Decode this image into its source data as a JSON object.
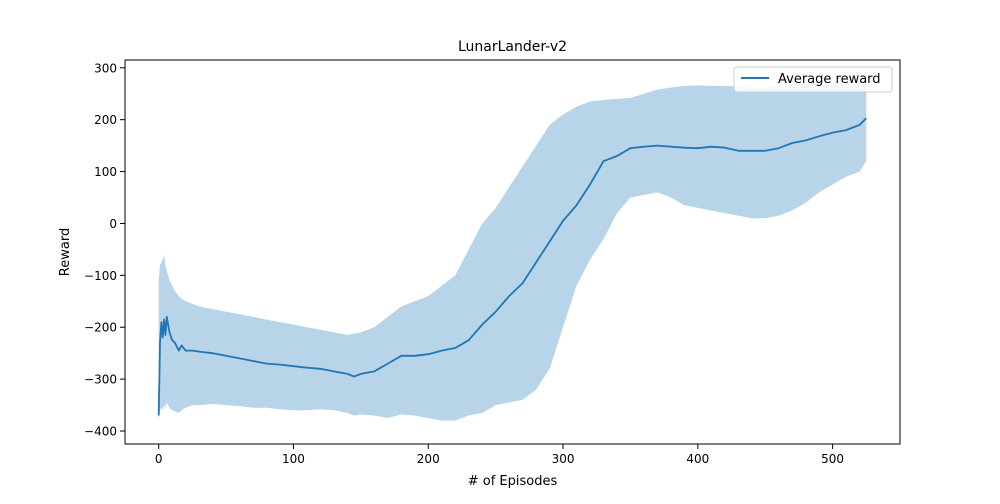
{
  "chart_data": {
    "type": "line",
    "title": "LunarLander-v2",
    "xlabel": "# of Episodes",
    "ylabel": "Reward",
    "xlim": [
      -25,
      550
    ],
    "ylim": [
      -425,
      315
    ],
    "xticks": [
      0,
      100,
      200,
      300,
      400,
      500
    ],
    "yticks": [
      -400,
      -300,
      -200,
      -100,
      0,
      100,
      200,
      300
    ],
    "grid": false,
    "legend_position": "top-right",
    "series": [
      {
        "name": "Average reward",
        "color": "#1f77b4",
        "band_color": "#b8d4e8",
        "x": [
          0,
          1,
          2,
          3,
          4,
          5,
          6,
          7,
          8,
          10,
          12,
          15,
          17,
          20,
          25,
          30,
          40,
          50,
          60,
          70,
          80,
          90,
          100,
          110,
          120,
          130,
          140,
          145,
          150,
          160,
          170,
          180,
          190,
          200,
          210,
          220,
          230,
          240,
          250,
          260,
          270,
          280,
          290,
          300,
          310,
          320,
          330,
          340,
          350,
          360,
          370,
          380,
          390,
          400,
          410,
          420,
          430,
          440,
          450,
          460,
          470,
          480,
          490,
          500,
          510,
          520,
          525
        ],
        "y": [
          -370,
          -230,
          -190,
          -220,
          -185,
          -215,
          -180,
          -195,
          -210,
          -225,
          -230,
          -245,
          -235,
          -245,
          -245,
          -247,
          -250,
          -255,
          -260,
          -265,
          -270,
          -272,
          -275,
          -278,
          -280,
          -285,
          -290,
          -295,
          -290,
          -285,
          -270,
          -255,
          -255,
          -252,
          -245,
          -240,
          -225,
          -195,
          -170,
          -140,
          -115,
          -75,
          -35,
          5,
          35,
          75,
          120,
          130,
          145,
          148,
          150,
          148,
          146,
          145,
          148,
          146,
          140,
          140,
          140,
          145,
          155,
          160,
          168,
          175,
          180,
          190,
          203
        ],
        "lower": [
          -380,
          -360,
          -355,
          -360,
          -350,
          -355,
          -345,
          -350,
          -355,
          -360,
          -362,
          -365,
          -360,
          -355,
          -350,
          -350,
          -348,
          -350,
          -352,
          -355,
          -355,
          -358,
          -360,
          -360,
          -358,
          -360,
          -365,
          -370,
          -368,
          -370,
          -375,
          -368,
          -370,
          -375,
          -380,
          -380,
          -370,
          -365,
          -350,
          -345,
          -340,
          -320,
          -280,
          -200,
          -120,
          -70,
          -30,
          20,
          50,
          55,
          60,
          50,
          35,
          30,
          25,
          20,
          15,
          10,
          10,
          15,
          25,
          40,
          60,
          75,
          90,
          100,
          120
        ],
        "upper": [
          -110,
          -80,
          -75,
          -70,
          -60,
          -80,
          -90,
          -100,
          -110,
          -120,
          -130,
          -140,
          -145,
          -150,
          -155,
          -160,
          -165,
          -170,
          -175,
          -180,
          -185,
          -190,
          -195,
          -200,
          -205,
          -210,
          -215,
          -212,
          -210,
          -200,
          -180,
          -160,
          -150,
          -140,
          -120,
          -100,
          -50,
          0,
          30,
          70,
          110,
          150,
          190,
          210,
          225,
          235,
          238,
          240,
          242,
          250,
          258,
          262,
          265,
          266,
          265,
          265,
          264,
          262,
          262,
          265,
          268,
          270,
          272,
          270,
          268,
          266,
          270
        ]
      }
    ]
  }
}
